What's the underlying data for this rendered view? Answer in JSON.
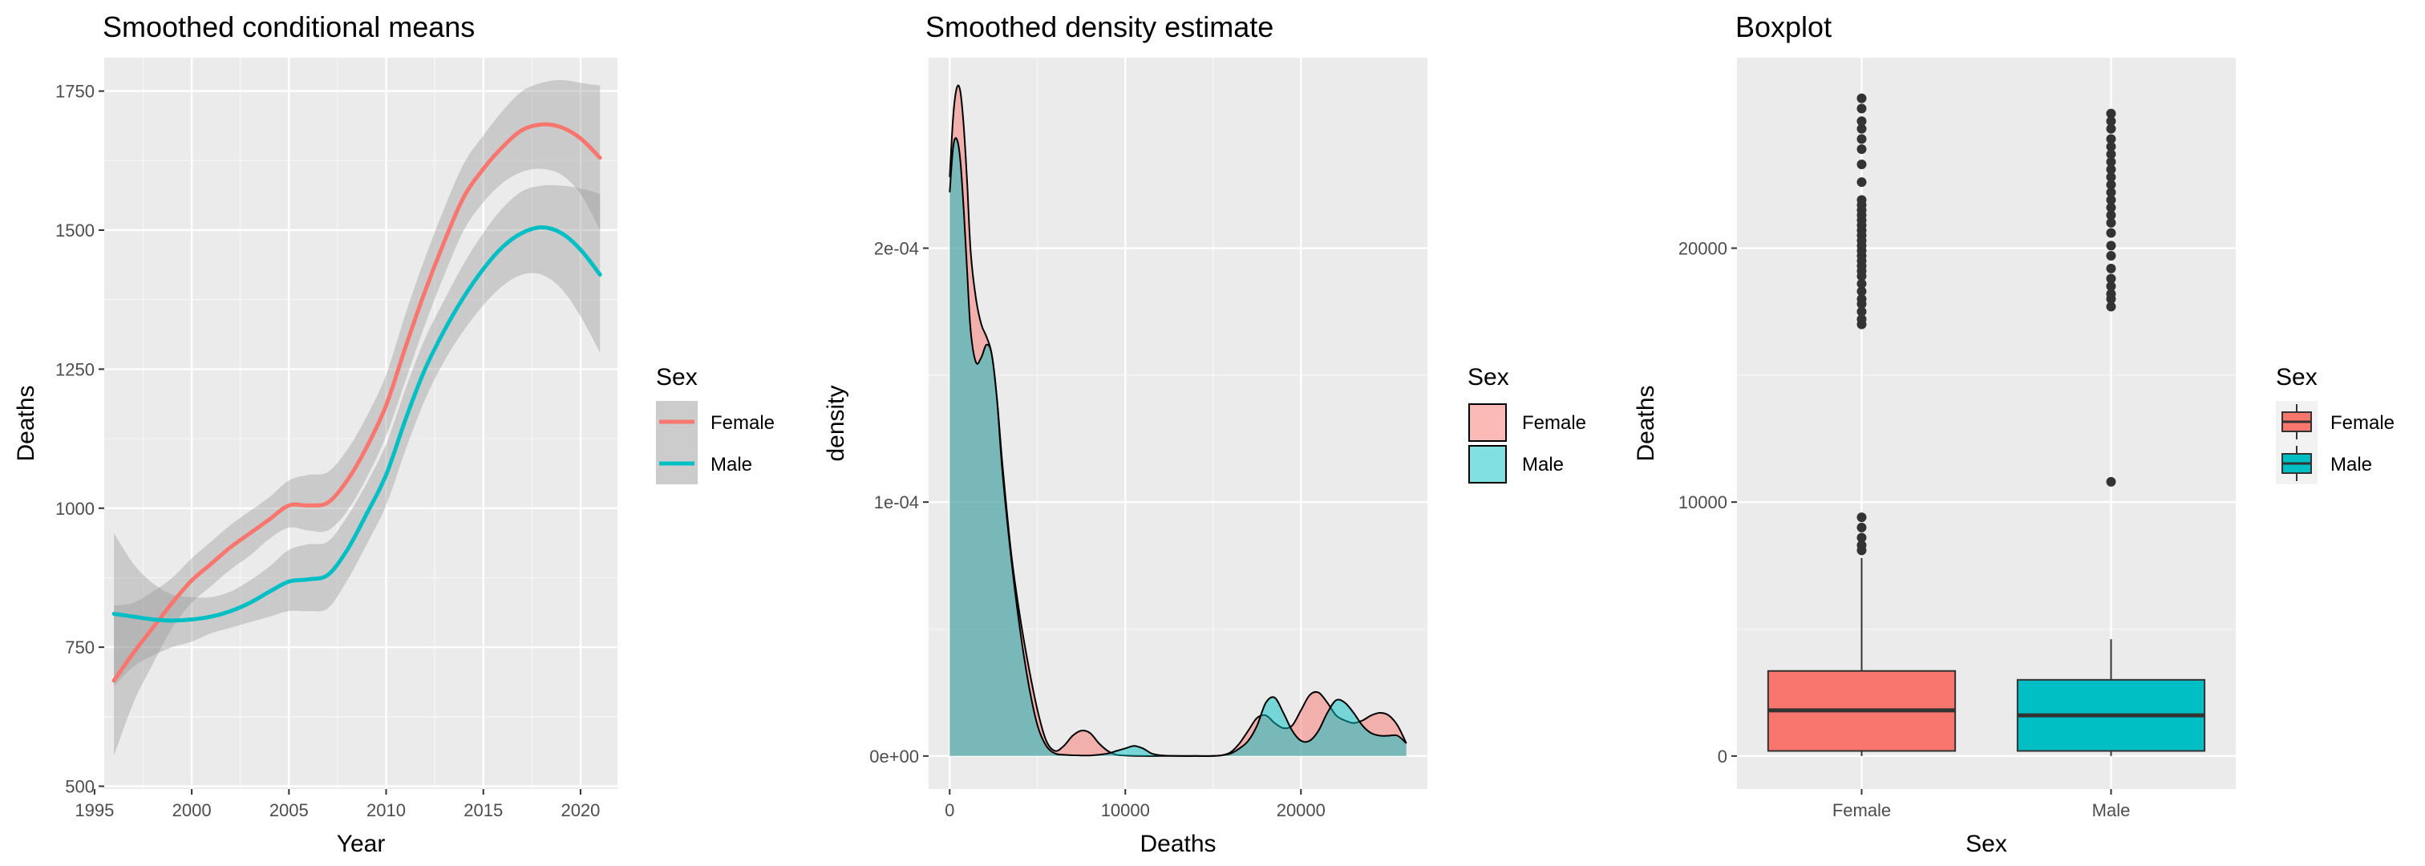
{
  "colors": {
    "female": "#F8766D",
    "male": "#00BFC4",
    "panel_bg": "#EBEBEB",
    "grid": "#FFFFFF",
    "ribbon": "#999999",
    "outlier": "#333333"
  },
  "chart_data": [
    {
      "type": "line",
      "title": "Smoothed conditional means",
      "xlabel": "Year",
      "ylabel": "Deaths",
      "xlim": [
        1995.5,
        2021.9
      ],
      "ylim": [
        495,
        1810
      ],
      "xticks": [
        "1995",
        "2000",
        "2005",
        "2010",
        "2015",
        "2020"
      ],
      "yticks": [
        "500",
        "750",
        "1000",
        "1250",
        "1500",
        "1750"
      ],
      "grid": true,
      "legend": {
        "title": "Sex",
        "position": "right"
      },
      "x": [
        1996,
        1997,
        1998,
        1999,
        2000,
        2001,
        2002,
        2003,
        2004,
        2005,
        2006,
        2007,
        2008,
        2009,
        2010,
        2011,
        2012,
        2013,
        2014,
        2015,
        2016,
        2017,
        2018,
        2019,
        2020,
        2021
      ],
      "series": [
        {
          "name": "Female",
          "values": [
            690,
            740,
            785,
            830,
            870,
            900,
            930,
            955,
            980,
            1005,
            1005,
            1010,
            1050,
            1110,
            1185,
            1290,
            1390,
            1480,
            1560,
            1610,
            1650,
            1680,
            1690,
            1685,
            1665,
            1630
          ],
          "lower": [
            555,
            650,
            720,
            785,
            830,
            860,
            890,
            915,
            945,
            965,
            960,
            960,
            995,
            1055,
            1130,
            1230,
            1330,
            1420,
            1500,
            1550,
            1585,
            1605,
            1610,
            1600,
            1565,
            1500
          ],
          "upper": [
            825,
            830,
            850,
            875,
            910,
            940,
            970,
            995,
            1020,
            1050,
            1060,
            1065,
            1105,
            1165,
            1240,
            1350,
            1450,
            1540,
            1620,
            1670,
            1715,
            1750,
            1765,
            1770,
            1765,
            1760
          ]
        },
        {
          "name": "Male",
          "values": [
            810,
            805,
            800,
            798,
            800,
            805,
            815,
            830,
            850,
            868,
            872,
            880,
            925,
            990,
            1060,
            1160,
            1250,
            1320,
            1380,
            1430,
            1470,
            1495,
            1505,
            1495,
            1465,
            1420
          ],
          "lower": [
            680,
            715,
            735,
            750,
            760,
            775,
            785,
            795,
            805,
            815,
            815,
            820,
            870,
            935,
            1005,
            1105,
            1195,
            1265,
            1320,
            1365,
            1400,
            1420,
            1420,
            1395,
            1345,
            1280
          ],
          "upper": [
            955,
            900,
            865,
            845,
            840,
            840,
            850,
            870,
            895,
            925,
            935,
            940,
            985,
            1045,
            1115,
            1215,
            1305,
            1375,
            1440,
            1495,
            1540,
            1570,
            1580,
            1580,
            1575,
            1565
          ]
        }
      ]
    },
    {
      "type": "area",
      "title": "Smoothed density estimate",
      "xlabel": "Deaths",
      "ylabel": "density",
      "xlim": [
        -1200,
        27200
      ],
      "ylim": [
        -1.3e-05,
        0.000275
      ],
      "xticks": [
        "0",
        "10000",
        "20000"
      ],
      "yticks": [
        "0e+00",
        "1e-04",
        "2e-04"
      ],
      "grid": true,
      "legend": {
        "title": "Sex",
        "position": "right"
      },
      "series": [
        {
          "name": "Female",
          "x": [
            0,
            200,
            400,
            600,
            800,
            1000,
            1200,
            1500,
            1800,
            2100,
            2400,
            2700,
            3000,
            3500,
            4000,
            4500,
            5000,
            5500,
            6000,
            6500,
            7000,
            7500,
            8000,
            8500,
            9000,
            9500,
            10000,
            11000,
            12000,
            13000,
            14000,
            15000,
            15500,
            16000,
            16500,
            17000,
            17500,
            18000,
            18500,
            19000,
            19500,
            20000,
            20500,
            21000,
            21500,
            22000,
            22500,
            23000,
            23500,
            24000,
            24500,
            25000,
            25500,
            26000
          ],
          "values": [
            0.000228,
            0.000252,
            0.000263,
            0.000262,
            0.000248,
            0.000225,
            0.000198,
            0.00018,
            0.00017,
            0.000165,
            0.000158,
            0.00014,
            0.000115,
            8e-05,
            5.5e-05,
            3.5e-05,
            1.8e-05,
            6e-06,
            2e-06,
            4e-06,
            8e-06,
            1e-05,
            9e-06,
            5e-06,
            2e-06,
            5e-07,
            2e-07,
            0,
            0,
            0,
            0,
            0,
            3e-07,
            1.5e-06,
            5e-06,
            1e-05,
            1.5e-05,
            1.6e-05,
            1.3e-05,
            1.1e-05,
            1.2e-05,
            1.8e-05,
            2.4e-05,
            2.5e-05,
            2.1e-05,
            1.6e-05,
            1.4e-05,
            1.3e-05,
            1.4e-05,
            1.6e-05,
            1.7e-05,
            1.6e-05,
            1.2e-05,
            5e-06
          ]
        },
        {
          "name": "Male",
          "x": [
            0,
            200,
            400,
            600,
            800,
            1000,
            1200,
            1500,
            1800,
            2100,
            2400,
            2700,
            3000,
            3500,
            4000,
            4500,
            5000,
            5500,
            6000,
            6500,
            7000,
            7500,
            8000,
            8500,
            9000,
            9500,
            10000,
            10500,
            11000,
            11500,
            12000,
            13000,
            14000,
            15000,
            15500,
            16000,
            16500,
            17000,
            17500,
            18000,
            18500,
            19000,
            19500,
            20000,
            20500,
            21000,
            21500,
            22000,
            22500,
            23000,
            23500,
            24000,
            24500,
            25000,
            25500,
            26000
          ],
          "values": [
            0.000222,
            0.00024,
            0.000243,
            0.000235,
            0.000215,
            0.00019,
            0.000167,
            0.000155,
            0.000157,
            0.000162,
            0.000158,
            0.00014,
            0.000112,
            7.8e-05,
            5e-05,
            2.8e-05,
            1.2e-05,
            4e-06,
            1e-06,
            5e-07,
            3e-07,
            2e-07,
            2e-07,
            5e-07,
            1e-06,
            2e-06,
            3e-06,
            4e-06,
            3e-06,
            1e-06,
            3e-07,
            0,
            0,
            0,
            3e-07,
            1e-06,
            3e-06,
            6e-06,
            1.2e-05,
            2.1e-05,
            2.3e-05,
            1.7e-05,
            1e-05,
            6e-06,
            6e-06,
            1e-05,
            1.7e-05,
            2.2e-05,
            2.1e-05,
            1.7e-05,
            1.2e-05,
            9e-06,
            8e-06,
            8e-06,
            8e-06,
            5e-06
          ]
        }
      ]
    },
    {
      "type": "box",
      "title": "Boxplot",
      "xlabel": "Sex",
      "ylabel": "Deaths",
      "categories": [
        "Female",
        "Male"
      ],
      "ylim": [
        -1300,
        27500
      ],
      "yticks": [
        "0",
        "10000",
        "20000"
      ],
      "grid": true,
      "legend": {
        "title": "Sex",
        "position": "right"
      },
      "boxes": [
        {
          "name": "Female",
          "lower_whisker": 0,
          "q1": 200,
          "median": 1800,
          "q3": 3350,
          "upper_whisker": 7800,
          "outliers": [
            8100,
            8300,
            8600,
            9000,
            9400,
            17000,
            17200,
            17500,
            17800,
            18000,
            18300,
            18600,
            18900,
            19100,
            19300,
            19500,
            19700,
            19900,
            20100,
            20300,
            20500,
            20700,
            20900,
            21100,
            21300,
            21500,
            21700,
            21900,
            22600,
            23300,
            23900,
            24300,
            24700,
            25000,
            25500,
            25900
          ]
        },
        {
          "name": "Male",
          "lower_whisker": 0,
          "q1": 200,
          "median": 1600,
          "q3": 3000,
          "upper_whisker": 4600,
          "outliers": [
            10800,
            17700,
            18000,
            18200,
            18500,
            18800,
            19200,
            19700,
            20100,
            20600,
            21000,
            21300,
            21600,
            21900,
            22200,
            22500,
            22800,
            23100,
            23400,
            23700,
            24000,
            24300,
            24700,
            25000,
            25300
          ]
        }
      ]
    }
  ]
}
